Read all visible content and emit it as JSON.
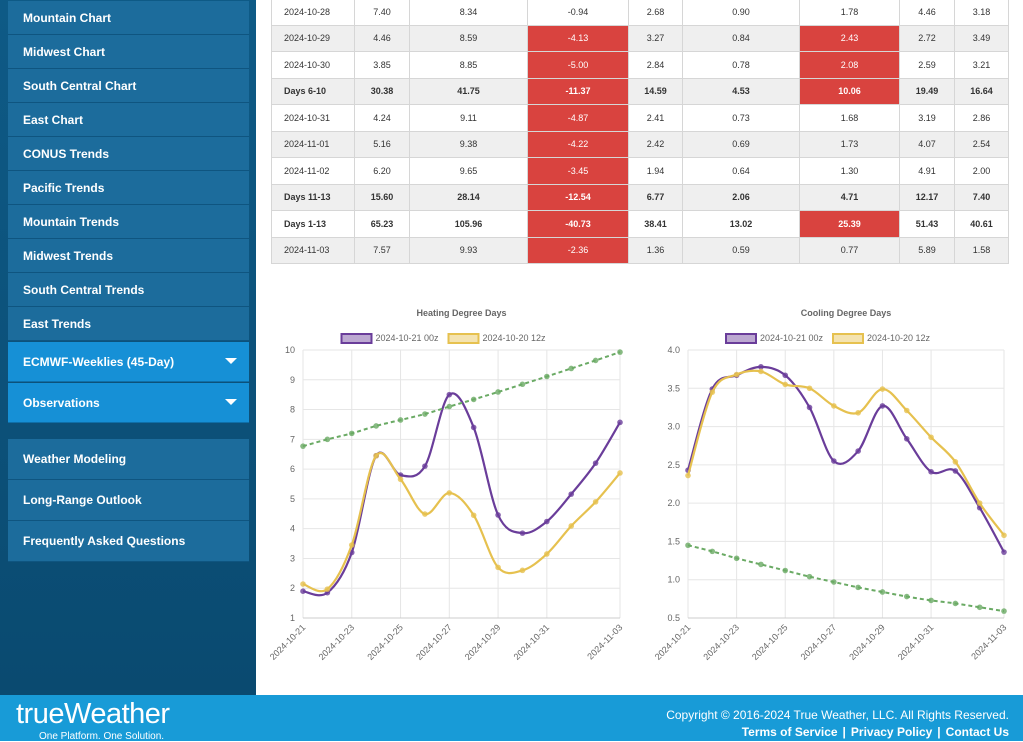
{
  "sidebar": {
    "menu": [
      "Mountain Chart",
      "Midwest Chart",
      "South Central Chart",
      "East Chart",
      "CONUS Trends",
      "Pacific Trends",
      "Mountain Trends",
      "Midwest Trends",
      "South Central Trends",
      "East Trends"
    ],
    "dropdowns": [
      "ECMWF-Weeklies (45-Day)",
      "Observations"
    ],
    "links": [
      "Weather Modeling",
      "Long-Range Outlook",
      "Frequently Asked Questions"
    ]
  },
  "table": {
    "rows": [
      [
        "2024-10-28",
        "7.40",
        "8.34",
        "-0.94",
        "2.68",
        "0.90",
        "1.78",
        "4.46",
        "3.18"
      ],
      [
        "2024-10-29",
        "4.46",
        "8.59",
        {
          "text": "-4.13",
          "color": "#d9433f"
        },
        "3.27",
        "0.84",
        {
          "text": "2.43",
          "color": "#d9433f"
        },
        "2.72",
        "3.49"
      ],
      [
        "2024-10-30",
        "3.85",
        "8.85",
        {
          "text": "-5.00",
          "color": "#d9433f"
        },
        "2.84",
        "0.78",
        {
          "text": "2.08",
          "color": "#d9433f"
        },
        "2.59",
        "3.21"
      ],
      [
        "Days 6-10",
        "30.38",
        "41.75",
        {
          "text": "-11.37",
          "color": "#d9433f"
        },
        "14.59",
        "4.53",
        {
          "text": "10.06",
          "color": "#d9433f"
        },
        "19.49",
        "16.64"
      ],
      [
        "2024-10-31",
        "4.24",
        "9.11",
        {
          "text": "-4.87",
          "color": "#d9433f"
        },
        "2.41",
        "0.73",
        "1.68",
        "3.19",
        "2.86"
      ],
      [
        "2024-11-01",
        "5.16",
        "9.38",
        {
          "text": "-4.22",
          "color": "#d9433f"
        },
        "2.42",
        "0.69",
        "1.73",
        "4.07",
        "2.54"
      ],
      [
        "2024-11-02",
        "6.20",
        "9.65",
        {
          "text": "-3.45",
          "color": "#d9433f"
        },
        "1.94",
        "0.64",
        "1.30",
        "4.91",
        "2.00"
      ],
      [
        "Days 11-13",
        "15.60",
        "28.14",
        {
          "text": "-12.54",
          "color": "#d9433f"
        },
        "6.77",
        "2.06",
        "4.71",
        "12.17",
        "7.40"
      ],
      [
        "Days 1-13",
        "65.23",
        "105.96",
        {
          "text": "-40.73",
          "color": "#d9433f"
        },
        "38.41",
        "13.02",
        {
          "text": "25.39",
          "color": "#d9433f"
        },
        "51.43",
        "40.61"
      ],
      [
        "2024-11-03",
        "7.57",
        "9.93",
        {
          "text": "-2.36",
          "color": "#d9433f"
        },
        "1.36",
        "0.59",
        "0.77",
        "5.89",
        "1.58"
      ]
    ]
  },
  "chart_data": [
    {
      "type": "line",
      "title": "Heating Degree Days",
      "categories": [
        "2024-10-21",
        null,
        "2024-10-23",
        null,
        "2024-10-25",
        null,
        "2024-10-27",
        null,
        "2024-10-29",
        null,
        "2024-10-31",
        null,
        null,
        "2024-11-03"
      ],
      "series": [
        {
          "name": "2024-10-21 00z",
          "color": "#6a3d9a",
          "values": [
            1.9,
            1.85,
            3.2,
            6.45,
            5.8,
            6.1,
            8.5,
            7.4,
            4.46,
            3.85,
            4.24,
            5.16,
            6.2,
            7.57
          ]
        },
        {
          "name": "2024-10-20 12z",
          "color": "#e6c14f",
          "values": [
            2.14,
            1.97,
            3.45,
            6.45,
            5.66,
            4.49,
            5.2,
            4.45,
            2.7,
            2.6,
            3.15,
            4.09,
            4.9,
            5.87
          ]
        },
        {
          "color": "#6aaa64",
          "dashed": true,
          "values": [
            6.77,
            7.0,
            7.2,
            7.45,
            7.65,
            7.85,
            8.1,
            8.34,
            8.59,
            8.85,
            9.11,
            9.38,
            9.65,
            9.93
          ]
        }
      ],
      "ylim": [
        1,
        10
      ],
      "yticks": [
        1,
        2,
        3,
        4,
        5,
        6,
        7,
        8,
        9,
        10
      ],
      "grid": true
    },
    {
      "type": "line",
      "title": "Cooling Degree Days",
      "categories": [
        "2024-10-21",
        null,
        "2024-10-23",
        null,
        "2024-10-25",
        null,
        "2024-10-27",
        null,
        "2024-10-29",
        null,
        "2024-10-31",
        null,
        null,
        "2024-11-03"
      ],
      "series": [
        {
          "name": "2024-10-21 00z",
          "color": "#6a3d9a",
          "values": [
            2.43,
            3.49,
            3.67,
            3.78,
            3.67,
            3.25,
            2.55,
            2.68,
            3.27,
            2.84,
            2.41,
            2.42,
            1.94,
            1.36
          ]
        },
        {
          "name": "2024-10-20 12z",
          "color": "#e6c14f",
          "values": [
            2.36,
            3.45,
            3.68,
            3.72,
            3.55,
            3.5,
            3.27,
            3.18,
            3.49,
            3.21,
            2.86,
            2.54,
            2.0,
            1.58
          ]
        },
        {
          "color": "#6aaa64",
          "dashed": true,
          "values": [
            1.45,
            1.37,
            1.28,
            1.2,
            1.12,
            1.04,
            0.97,
            0.9,
            0.84,
            0.78,
            0.73,
            0.69,
            0.64,
            0.59
          ]
        }
      ],
      "ylim": [
        0.5,
        4
      ],
      "yticks": [
        0.5,
        {
          "value": 1,
          "label": "1.0"
        },
        1.5,
        {
          "value": 2,
          "label": "2.0"
        },
        2.5,
        {
          "value": 3,
          "label": "3.0"
        },
        3.5,
        {
          "value": 4,
          "label": "4.0"
        }
      ],
      "grid": true
    }
  ],
  "footer": {
    "logo": "trueWeather",
    "tagline": "One Platform. One Solution.",
    "copyright": "Copyright © 2016-2024 True Weather, LLC. All Rights Reserved.",
    "links": [
      "Terms of Service",
      "Privacy Policy",
      "Contact Us"
    ],
    "separator": "|"
  }
}
